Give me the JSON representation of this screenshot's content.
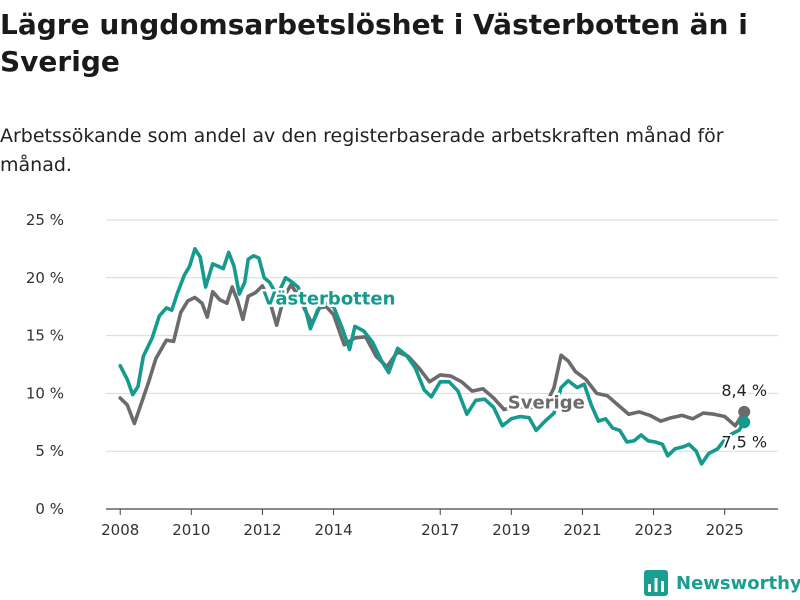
{
  "chart_data": {
    "type": "line",
    "title": "Lägre ungdomsarbetslöshet i Västerbotten än i Sverige",
    "subtitle": "Arbetssökande som andel av den registerbaserade arbetskraften månad för månad.",
    "xlabel": "",
    "ylabel": "",
    "ylim": [
      0,
      25
    ],
    "y_ticks": [
      "0 %",
      "5 %",
      "10 %",
      "15 %",
      "20 %",
      "25 %"
    ],
    "y_tick_values": [
      0,
      5,
      10,
      15,
      20,
      25
    ],
    "x_ticks": [
      "2008",
      "2010",
      "2012",
      "2014",
      "2017",
      "2019",
      "2021",
      "2023",
      "2025"
    ],
    "x_tick_values": [
      2008,
      2010,
      2012,
      2014,
      2017,
      2019,
      2021,
      2023,
      2025
    ],
    "xlim": [
      2007.6,
      2026.5
    ],
    "grid": "horizontal",
    "series": [
      {
        "name": "Sverige",
        "color": "#6b6b6e",
        "end_label": "8,4 %",
        "points": [
          [
            2008.0,
            9.6
          ],
          [
            2008.2,
            9.0
          ],
          [
            2008.4,
            7.4
          ],
          [
            2008.6,
            9.2
          ],
          [
            2008.8,
            11.0
          ],
          [
            2009.0,
            13.0
          ],
          [
            2009.3,
            14.6
          ],
          [
            2009.5,
            14.5
          ],
          [
            2009.7,
            17.0
          ],
          [
            2009.9,
            18.0
          ],
          [
            2010.1,
            18.3
          ],
          [
            2010.3,
            17.8
          ],
          [
            2010.45,
            16.6
          ],
          [
            2010.6,
            18.8
          ],
          [
            2010.8,
            18.1
          ],
          [
            2011.0,
            17.8
          ],
          [
            2011.15,
            19.2
          ],
          [
            2011.3,
            18.0
          ],
          [
            2011.45,
            16.4
          ],
          [
            2011.6,
            18.4
          ],
          [
            2011.8,
            18.7
          ],
          [
            2012.0,
            19.3
          ],
          [
            2012.2,
            18.0
          ],
          [
            2012.4,
            15.9
          ],
          [
            2012.6,
            18.3
          ],
          [
            2012.8,
            19.4
          ],
          [
            2013.0,
            18.5
          ],
          [
            2013.2,
            17.2
          ],
          [
            2013.4,
            16.0
          ],
          [
            2013.6,
            17.4
          ],
          [
            2013.8,
            17.5
          ],
          [
            2014.0,
            16.8
          ],
          [
            2014.3,
            14.2
          ],
          [
            2014.6,
            14.8
          ],
          [
            2014.9,
            14.9
          ],
          [
            2015.2,
            13.2
          ],
          [
            2015.5,
            12.3
          ],
          [
            2015.8,
            13.6
          ],
          [
            2016.1,
            13.2
          ],
          [
            2016.4,
            12.2
          ],
          [
            2016.7,
            11.0
          ],
          [
            2017.0,
            11.6
          ],
          [
            2017.3,
            11.5
          ],
          [
            2017.6,
            11.0
          ],
          [
            2017.9,
            10.2
          ],
          [
            2018.2,
            10.4
          ],
          [
            2018.5,
            9.6
          ],
          [
            2018.8,
            8.6
          ],
          [
            2019.1,
            8.9
          ],
          [
            2019.4,
            8.8
          ],
          [
            2019.7,
            8.8
          ],
          [
            2020.0,
            9.2
          ],
          [
            2020.2,
            10.5
          ],
          [
            2020.4,
            13.3
          ],
          [
            2020.6,
            12.8
          ],
          [
            2020.8,
            11.9
          ],
          [
            2021.1,
            11.2
          ],
          [
            2021.4,
            10.0
          ],
          [
            2021.7,
            9.8
          ],
          [
            2022.0,
            9.0
          ],
          [
            2022.3,
            8.2
          ],
          [
            2022.6,
            8.4
          ],
          [
            2022.9,
            8.1
          ],
          [
            2023.2,
            7.6
          ],
          [
            2023.5,
            7.9
          ],
          [
            2023.8,
            8.1
          ],
          [
            2024.1,
            7.8
          ],
          [
            2024.4,
            8.3
          ],
          [
            2024.7,
            8.2
          ],
          [
            2025.0,
            8.0
          ],
          [
            2025.3,
            7.2
          ],
          [
            2025.55,
            8.4
          ]
        ]
      },
      {
        "name": "Västerbotten",
        "color": "#159a8d",
        "end_label": "7,5 %",
        "points": [
          [
            2008.0,
            12.4
          ],
          [
            2008.2,
            11.2
          ],
          [
            2008.35,
            9.9
          ],
          [
            2008.5,
            10.6
          ],
          [
            2008.65,
            13.2
          ],
          [
            2008.9,
            14.8
          ],
          [
            2009.1,
            16.7
          ],
          [
            2009.3,
            17.4
          ],
          [
            2009.45,
            17.2
          ],
          [
            2009.6,
            18.6
          ],
          [
            2009.8,
            20.2
          ],
          [
            2009.95,
            21.0
          ],
          [
            2010.1,
            22.5
          ],
          [
            2010.25,
            21.8
          ],
          [
            2010.4,
            19.2
          ],
          [
            2010.6,
            21.2
          ],
          [
            2010.75,
            21.0
          ],
          [
            2010.9,
            20.8
          ],
          [
            2011.05,
            22.2
          ],
          [
            2011.2,
            21.0
          ],
          [
            2011.35,
            18.6
          ],
          [
            2011.5,
            19.6
          ],
          [
            2011.6,
            21.6
          ],
          [
            2011.75,
            21.9
          ],
          [
            2011.9,
            21.7
          ],
          [
            2012.05,
            20.0
          ],
          [
            2012.2,
            19.6
          ],
          [
            2012.35,
            18.8
          ],
          [
            2012.5,
            19.0
          ],
          [
            2012.65,
            20.0
          ],
          [
            2012.8,
            19.7
          ],
          [
            2013.0,
            19.2
          ],
          [
            2013.2,
            17.4
          ],
          [
            2013.35,
            15.6
          ],
          [
            2013.55,
            17.2
          ],
          [
            2013.75,
            17.8
          ],
          [
            2014.0,
            17.5
          ],
          [
            2014.25,
            15.6
          ],
          [
            2014.45,
            13.8
          ],
          [
            2014.6,
            15.8
          ],
          [
            2014.85,
            15.4
          ],
          [
            2015.1,
            14.4
          ],
          [
            2015.35,
            12.8
          ],
          [
            2015.55,
            11.8
          ],
          [
            2015.8,
            13.9
          ],
          [
            2016.05,
            13.3
          ],
          [
            2016.3,
            12.2
          ],
          [
            2016.55,
            10.3
          ],
          [
            2016.75,
            9.7
          ],
          [
            2017.0,
            11.0
          ],
          [
            2017.25,
            11.0
          ],
          [
            2017.5,
            10.2
          ],
          [
            2017.75,
            8.2
          ],
          [
            2018.0,
            9.4
          ],
          [
            2018.25,
            9.5
          ],
          [
            2018.5,
            8.8
          ],
          [
            2018.75,
            7.2
          ],
          [
            2019.0,
            7.8
          ],
          [
            2019.25,
            8.0
          ],
          [
            2019.5,
            7.9
          ],
          [
            2019.7,
            6.8
          ],
          [
            2019.95,
            7.6
          ],
          [
            2020.2,
            8.3
          ],
          [
            2020.4,
            10.5
          ],
          [
            2020.6,
            11.1
          ],
          [
            2020.85,
            10.5
          ],
          [
            2021.05,
            10.8
          ],
          [
            2021.25,
            9.0
          ],
          [
            2021.45,
            7.6
          ],
          [
            2021.65,
            7.8
          ],
          [
            2021.85,
            7.0
          ],
          [
            2022.05,
            6.8
          ],
          [
            2022.25,
            5.8
          ],
          [
            2022.45,
            5.9
          ],
          [
            2022.65,
            6.4
          ],
          [
            2022.85,
            5.9
          ],
          [
            2023.05,
            5.8
          ],
          [
            2023.25,
            5.6
          ],
          [
            2023.4,
            4.6
          ],
          [
            2023.6,
            5.2
          ],
          [
            2023.85,
            5.4
          ],
          [
            2024.0,
            5.6
          ],
          [
            2024.2,
            5.0
          ],
          [
            2024.35,
            3.9
          ],
          [
            2024.55,
            4.8
          ],
          [
            2024.8,
            5.2
          ],
          [
            2025.0,
            6.0
          ],
          [
            2025.2,
            6.5
          ],
          [
            2025.4,
            6.8
          ],
          [
            2025.55,
            7.5
          ]
        ]
      }
    ]
  },
  "brand": {
    "name": "Newsworthy",
    "color": "#1a9e8f",
    "icon": "bar-chart-icon"
  }
}
